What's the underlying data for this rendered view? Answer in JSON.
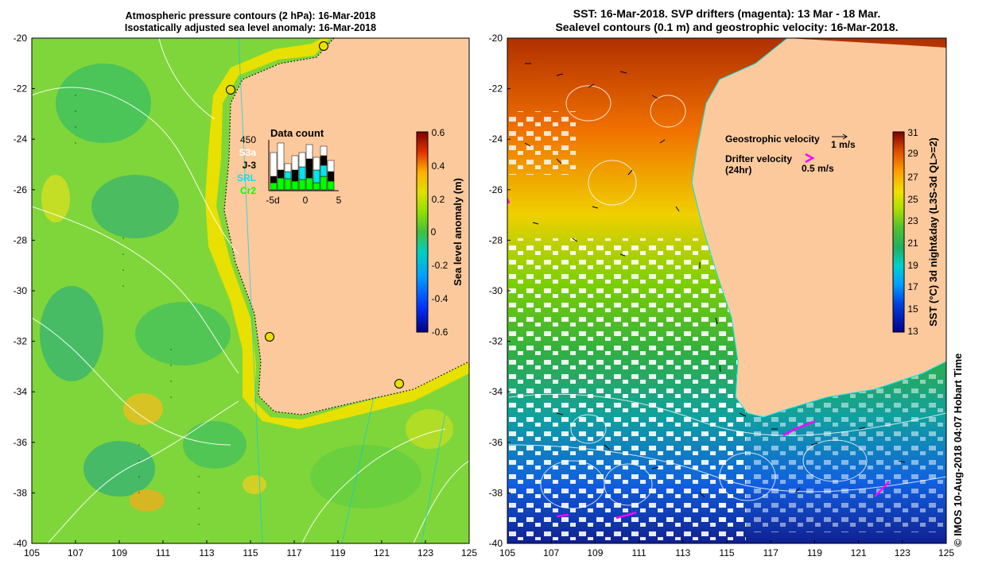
{
  "left_panel": {
    "title_line1": "Atmospheric pressure contours (2 hPa): 16-Mar-2018",
    "title_line2": "Isostatically adjusted sea level anomaly: 16-Mar-2018",
    "colorbar": {
      "label": "Sea level anomaly (m)",
      "ticks": [
        "0.6",
        "0.4",
        "0.2",
        "0",
        "-0.2",
        "-0.4",
        "-0.6"
      ],
      "colors": [
        "#000080",
        "#0030ff",
        "#00a0ff",
        "#00e0e0",
        "#20c040",
        "#60e000",
        "#d0e000",
        "#ffd000",
        "#ff8000",
        "#e03000",
        "#800000"
      ]
    },
    "inset": {
      "title": "Data count",
      "count": "450",
      "satellites": [
        {
          "name": "S3a",
          "color": "#ffffff"
        },
        {
          "name": "J-3",
          "color": "#000000"
        },
        {
          "name": "SRL",
          "color": "#00e5ee"
        },
        {
          "name": "Cr2",
          "color": "#00ff00"
        }
      ],
      "x_ticks": [
        "-5d",
        "0",
        "5"
      ]
    }
  },
  "right_panel": {
    "title_line1": "SST: 16-Mar-2018. SVP drifters (magenta): 13 Mar - 18 Mar.",
    "title_line2": "Sealevel contours (0.1 m) and geostrophic velocity: 16-Mar-2018.",
    "legend": {
      "geostrophic_label": "Geostrophic velocity",
      "geostrophic_scale": "1 m/s",
      "drifter_label_line1": "Drifter velocity",
      "drifter_label_line2": "(24hr)",
      "drifter_scale": "0.5 m/s",
      "drifter_color": "#ff00ff"
    },
    "colorbar": {
      "label": "SST (°C) 3d night&day (L3S-3d QL>=2)",
      "ticks": [
        "31",
        "29",
        "27",
        "25",
        "23",
        "21",
        "19",
        "17",
        "15",
        "13"
      ],
      "colors": [
        "#00008b",
        "#0030e0",
        "#0090ff",
        "#00d0e0",
        "#20b060",
        "#40c040",
        "#90e000",
        "#f0f000",
        "#ffb000",
        "#f07000",
        "#d03000",
        "#800000"
      ]
    }
  },
  "axes": {
    "y_ticks": [
      "-20",
      "-22",
      "-24",
      "-26",
      "-28",
      "-30",
      "-32",
      "-34",
      "-36",
      "-38",
      "-40"
    ],
    "x_ticks": [
      "105",
      "107",
      "109",
      "111",
      "113",
      "115",
      "117",
      "119",
      "121",
      "123",
      "125"
    ]
  },
  "credit": "© IMOS 10-Aug-2018 04:07 Hobart Time",
  "colors": {
    "land": "#fcc99d",
    "contour": "#ffffff",
    "coast_dotted": "#000000",
    "tide_gauge": "#e8e000"
  }
}
